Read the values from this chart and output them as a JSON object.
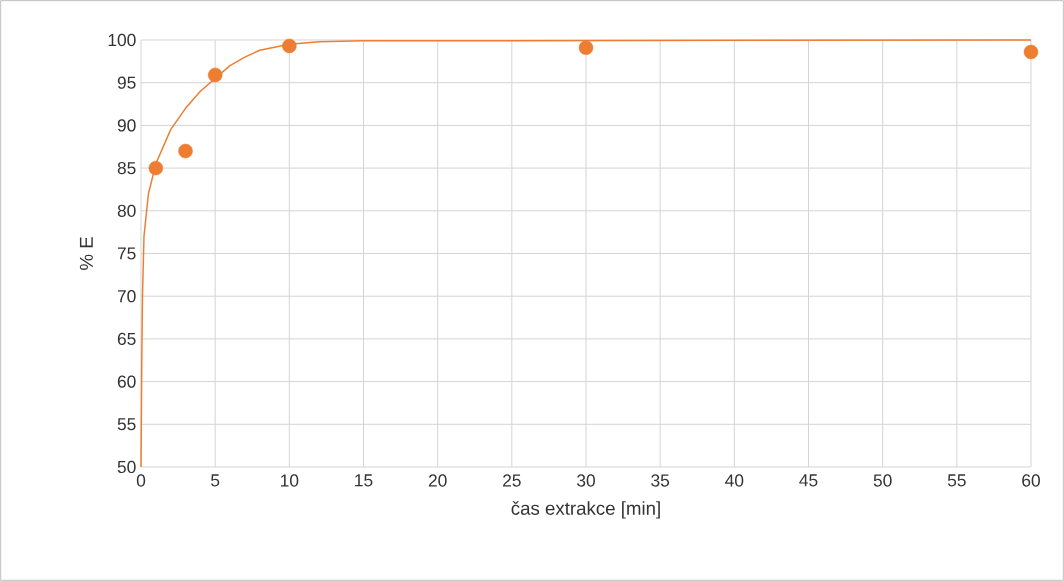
{
  "chart_data": {
    "type": "scatter",
    "xlabel": "čas extrakce [min]",
    "ylabel": "% E",
    "xlim": [
      0,
      60
    ],
    "ylim": [
      50,
      100
    ],
    "xticks": [
      0,
      5,
      10,
      15,
      20,
      25,
      30,
      35,
      40,
      45,
      50,
      55,
      60
    ],
    "yticks": [
      50,
      55,
      60,
      65,
      70,
      75,
      80,
      85,
      90,
      95,
      100
    ],
    "grid": true,
    "series": [
      {
        "color": "#ed7d31",
        "marker": "circle",
        "x": [
          1,
          3,
          5,
          10,
          30,
          60
        ],
        "values": [
          85.0,
          87.0,
          95.9,
          99.3,
          99.1,
          98.6
        ]
      },
      {
        "type": "line",
        "marker": "none",
        "color": "#ed7d31",
        "x": [
          0,
          0.05,
          0.1,
          0.2,
          0.5,
          1,
          2,
          3,
          4,
          5,
          6,
          7,
          8,
          10,
          12,
          15,
          60
        ],
        "values": [
          50,
          62,
          70,
          77,
          82,
          85.5,
          89.5,
          92,
          94,
          95.5,
          97,
          98,
          98.8,
          99.5,
          99.8,
          99.9,
          100
        ]
      }
    ]
  }
}
